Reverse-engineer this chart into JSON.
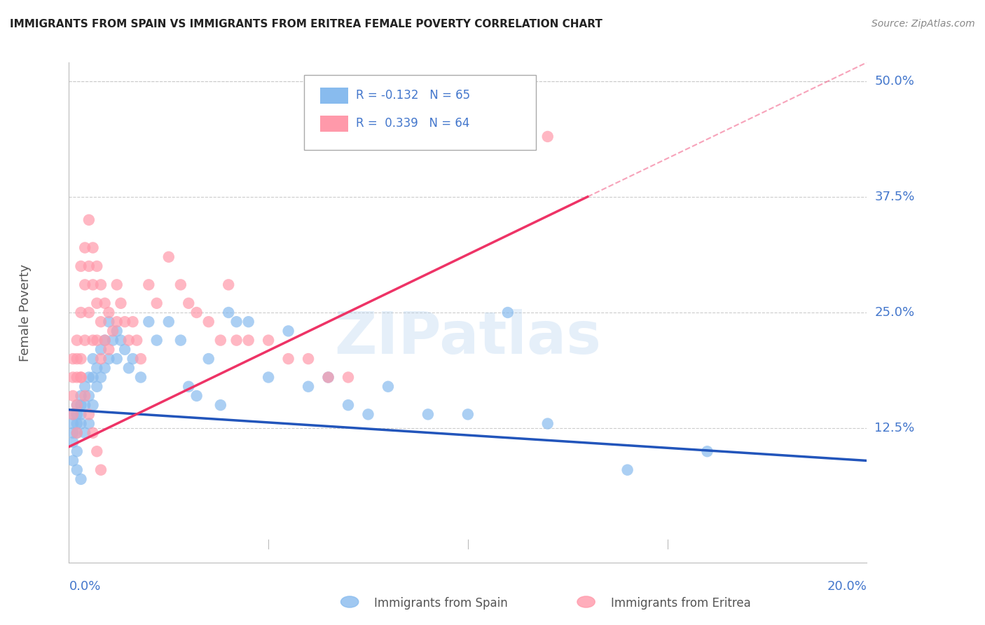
{
  "title": "IMMIGRANTS FROM SPAIN VS IMMIGRANTS FROM ERITREA FEMALE POVERTY CORRELATION CHART",
  "source": "Source: ZipAtlas.com",
  "ylabel": "Female Poverty",
  "ytick_labels": [
    "12.5%",
    "25.0%",
    "37.5%",
    "50.0%"
  ],
  "ytick_values": [
    0.125,
    0.25,
    0.375,
    0.5
  ],
  "xtick_labels": [
    "0.0%",
    "20.0%"
  ],
  "xtick_values": [
    0.0,
    0.2
  ],
  "xlim": [
    0.0,
    0.2
  ],
  "ylim": [
    -0.02,
    0.52
  ],
  "legend_blue_r": "R = -0.132",
  "legend_blue_n": "N = 65",
  "legend_pink_r": "R =  0.339",
  "legend_pink_n": "N = 64",
  "blue_color": "#88BBEE",
  "pink_color": "#FF99AA",
  "trend_blue_color": "#2255BB",
  "trend_pink_color": "#EE3366",
  "background_color": "#FFFFFF",
  "grid_color": "#CCCCCC",
  "axis_label_color": "#4477CC",
  "title_color": "#222222",
  "watermark": "ZIPatlas",
  "spain_x": [
    0.001,
    0.001,
    0.001,
    0.001,
    0.002,
    0.002,
    0.002,
    0.002,
    0.002,
    0.003,
    0.003,
    0.003,
    0.003,
    0.004,
    0.004,
    0.004,
    0.005,
    0.005,
    0.005,
    0.006,
    0.006,
    0.006,
    0.007,
    0.007,
    0.008,
    0.008,
    0.009,
    0.009,
    0.01,
    0.01,
    0.011,
    0.012,
    0.012,
    0.013,
    0.014,
    0.015,
    0.016,
    0.018,
    0.02,
    0.022,
    0.025,
    0.028,
    0.03,
    0.032,
    0.035,
    0.038,
    0.04,
    0.042,
    0.045,
    0.05,
    0.055,
    0.06,
    0.065,
    0.07,
    0.075,
    0.08,
    0.09,
    0.1,
    0.11,
    0.12,
    0.14,
    0.16,
    0.001,
    0.002,
    0.003
  ],
  "spain_y": [
    0.14,
    0.13,
    0.12,
    0.11,
    0.15,
    0.14,
    0.13,
    0.12,
    0.1,
    0.16,
    0.15,
    0.14,
    0.13,
    0.17,
    0.15,
    0.12,
    0.18,
    0.16,
    0.13,
    0.2,
    0.18,
    0.15,
    0.19,
    0.17,
    0.21,
    0.18,
    0.22,
    0.19,
    0.24,
    0.2,
    0.22,
    0.23,
    0.2,
    0.22,
    0.21,
    0.19,
    0.2,
    0.18,
    0.24,
    0.22,
    0.24,
    0.22,
    0.17,
    0.16,
    0.2,
    0.15,
    0.25,
    0.24,
    0.24,
    0.18,
    0.23,
    0.17,
    0.18,
    0.15,
    0.14,
    0.17,
    0.14,
    0.14,
    0.25,
    0.13,
    0.08,
    0.1,
    0.09,
    0.08,
    0.07
  ],
  "eritrea_x": [
    0.001,
    0.001,
    0.001,
    0.002,
    0.002,
    0.002,
    0.002,
    0.003,
    0.003,
    0.003,
    0.003,
    0.004,
    0.004,
    0.004,
    0.005,
    0.005,
    0.005,
    0.006,
    0.006,
    0.006,
    0.007,
    0.007,
    0.007,
    0.008,
    0.008,
    0.008,
    0.009,
    0.009,
    0.01,
    0.01,
    0.011,
    0.012,
    0.012,
    0.013,
    0.014,
    0.015,
    0.016,
    0.017,
    0.018,
    0.02,
    0.022,
    0.025,
    0.028,
    0.03,
    0.032,
    0.035,
    0.038,
    0.04,
    0.042,
    0.045,
    0.05,
    0.055,
    0.06,
    0.065,
    0.07,
    0.001,
    0.002,
    0.003,
    0.004,
    0.005,
    0.006,
    0.007,
    0.008,
    0.12
  ],
  "eritrea_y": [
    0.2,
    0.18,
    0.16,
    0.22,
    0.2,
    0.18,
    0.15,
    0.3,
    0.25,
    0.2,
    0.18,
    0.32,
    0.28,
    0.22,
    0.35,
    0.3,
    0.25,
    0.32,
    0.28,
    0.22,
    0.3,
    0.26,
    0.22,
    0.28,
    0.24,
    0.2,
    0.26,
    0.22,
    0.25,
    0.21,
    0.23,
    0.28,
    0.24,
    0.26,
    0.24,
    0.22,
    0.24,
    0.22,
    0.2,
    0.28,
    0.26,
    0.31,
    0.28,
    0.26,
    0.25,
    0.24,
    0.22,
    0.28,
    0.22,
    0.22,
    0.22,
    0.2,
    0.2,
    0.18,
    0.18,
    0.14,
    0.12,
    0.18,
    0.16,
    0.14,
    0.12,
    0.1,
    0.08,
    0.44
  ],
  "trend_blue_x0": 0.0,
  "trend_blue_y0": 0.145,
  "trend_blue_x1": 0.2,
  "trend_blue_y1": 0.09,
  "trend_pink_x0": 0.0,
  "trend_pink_y0": 0.105,
  "trend_pink_x1": 0.13,
  "trend_pink_y1": 0.375,
  "trend_pink_dash_x0": 0.13,
  "trend_pink_dash_y0": 0.375,
  "trend_pink_dash_x1": 0.2,
  "trend_pink_dash_y1": 0.52
}
